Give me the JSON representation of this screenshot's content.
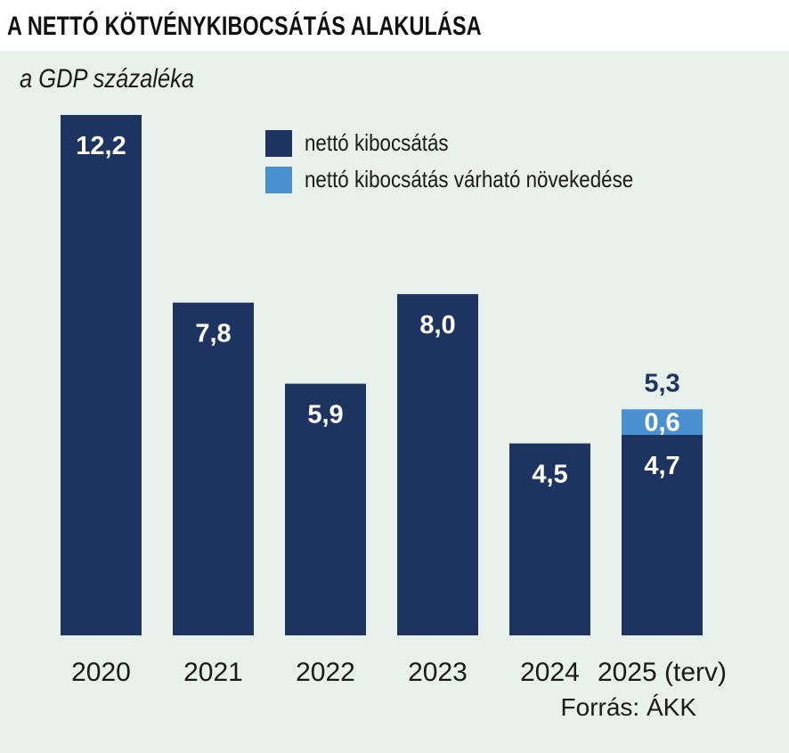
{
  "title": "A NETTÓ KÖTVÉNYKIBOCSÁTÁS ALAKULÁSA",
  "subtitle": "a GDP százaléka",
  "source": "Forrás: ÁKK",
  "colors": {
    "background": "#e8f1ec",
    "primary": "#1d3461",
    "secondary": "#4a90d0"
  },
  "chart_data": {
    "type": "bar",
    "stacked": true,
    "title": "A NETTÓ KÖTVÉNYKIBOCSÁTÁS ALAKULÁSA",
    "ylabel": "a GDP százaléka",
    "ylim": [
      0,
      12.2
    ],
    "grid": false,
    "legend_position": "top-right",
    "categories": [
      "2020",
      "2021",
      "2022",
      "2023",
      "2024",
      "2025 (terv)"
    ],
    "series": [
      {
        "name": "nettó kibocsátás",
        "color": "#1d3461",
        "values": [
          12.2,
          7.8,
          5.9,
          8.0,
          4.5,
          4.7
        ],
        "labels": [
          "12,2",
          "7,8",
          "5,9",
          "8,0",
          "4,5",
          "4,7"
        ]
      },
      {
        "name": "nettó kibocsátás várható  növekedése",
        "color": "#4a90d0",
        "values": [
          0,
          0,
          0,
          0,
          0,
          0.6
        ],
        "labels": [
          "",
          "",
          "",
          "",
          "",
          "0,6"
        ]
      }
    ],
    "totals": [
      {
        "category": "2025 (terv)",
        "value": 5.3,
        "label": "5,3"
      }
    ]
  }
}
